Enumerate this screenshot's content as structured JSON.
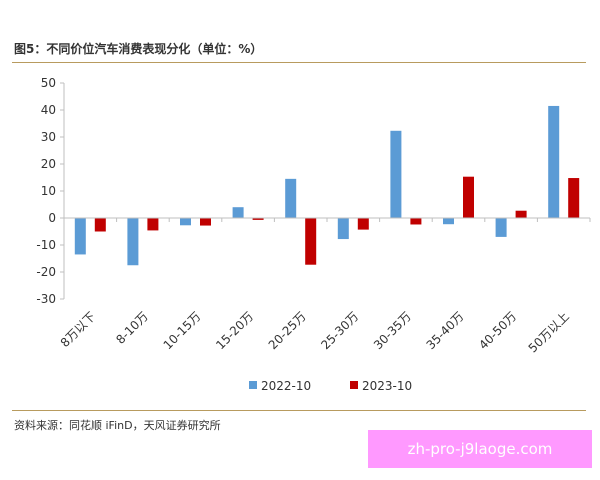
{
  "figure": {
    "title": "图5：不同价位汽车消费表现分化（单位：%）",
    "source": "资料来源：同花顺 iFinD，天风证券研究所"
  },
  "watermark": {
    "text": "zh-pro-j9laoge.com"
  },
  "chart_data": {
    "type": "bar",
    "title": "",
    "xlabel": "",
    "ylabel": "",
    "ylim": [
      -30,
      50
    ],
    "yticks": [
      -30,
      -20,
      -10,
      0,
      10,
      20,
      30,
      40,
      50
    ],
    "grid": false,
    "legend_position": "bottom",
    "categories": [
      "8万以下",
      "8-10万",
      "10-15万",
      "15-20万",
      "20-25万",
      "25-30万",
      "30-35万",
      "35-40万",
      "40-50万",
      "50万以上"
    ],
    "series": [
      {
        "name": "2022-10",
        "color": "#5b9bd5",
        "values": [
          -13.5,
          -17.5,
          -2.7,
          4.0,
          14.5,
          -7.8,
          32.3,
          -2.3,
          -7.0,
          41.5
        ]
      },
      {
        "name": "2023-10",
        "color": "#c00000",
        "values": [
          -5.0,
          -4.6,
          -2.8,
          -0.7,
          -17.3,
          -4.3,
          -2.4,
          15.3,
          2.7,
          14.8
        ]
      }
    ]
  }
}
